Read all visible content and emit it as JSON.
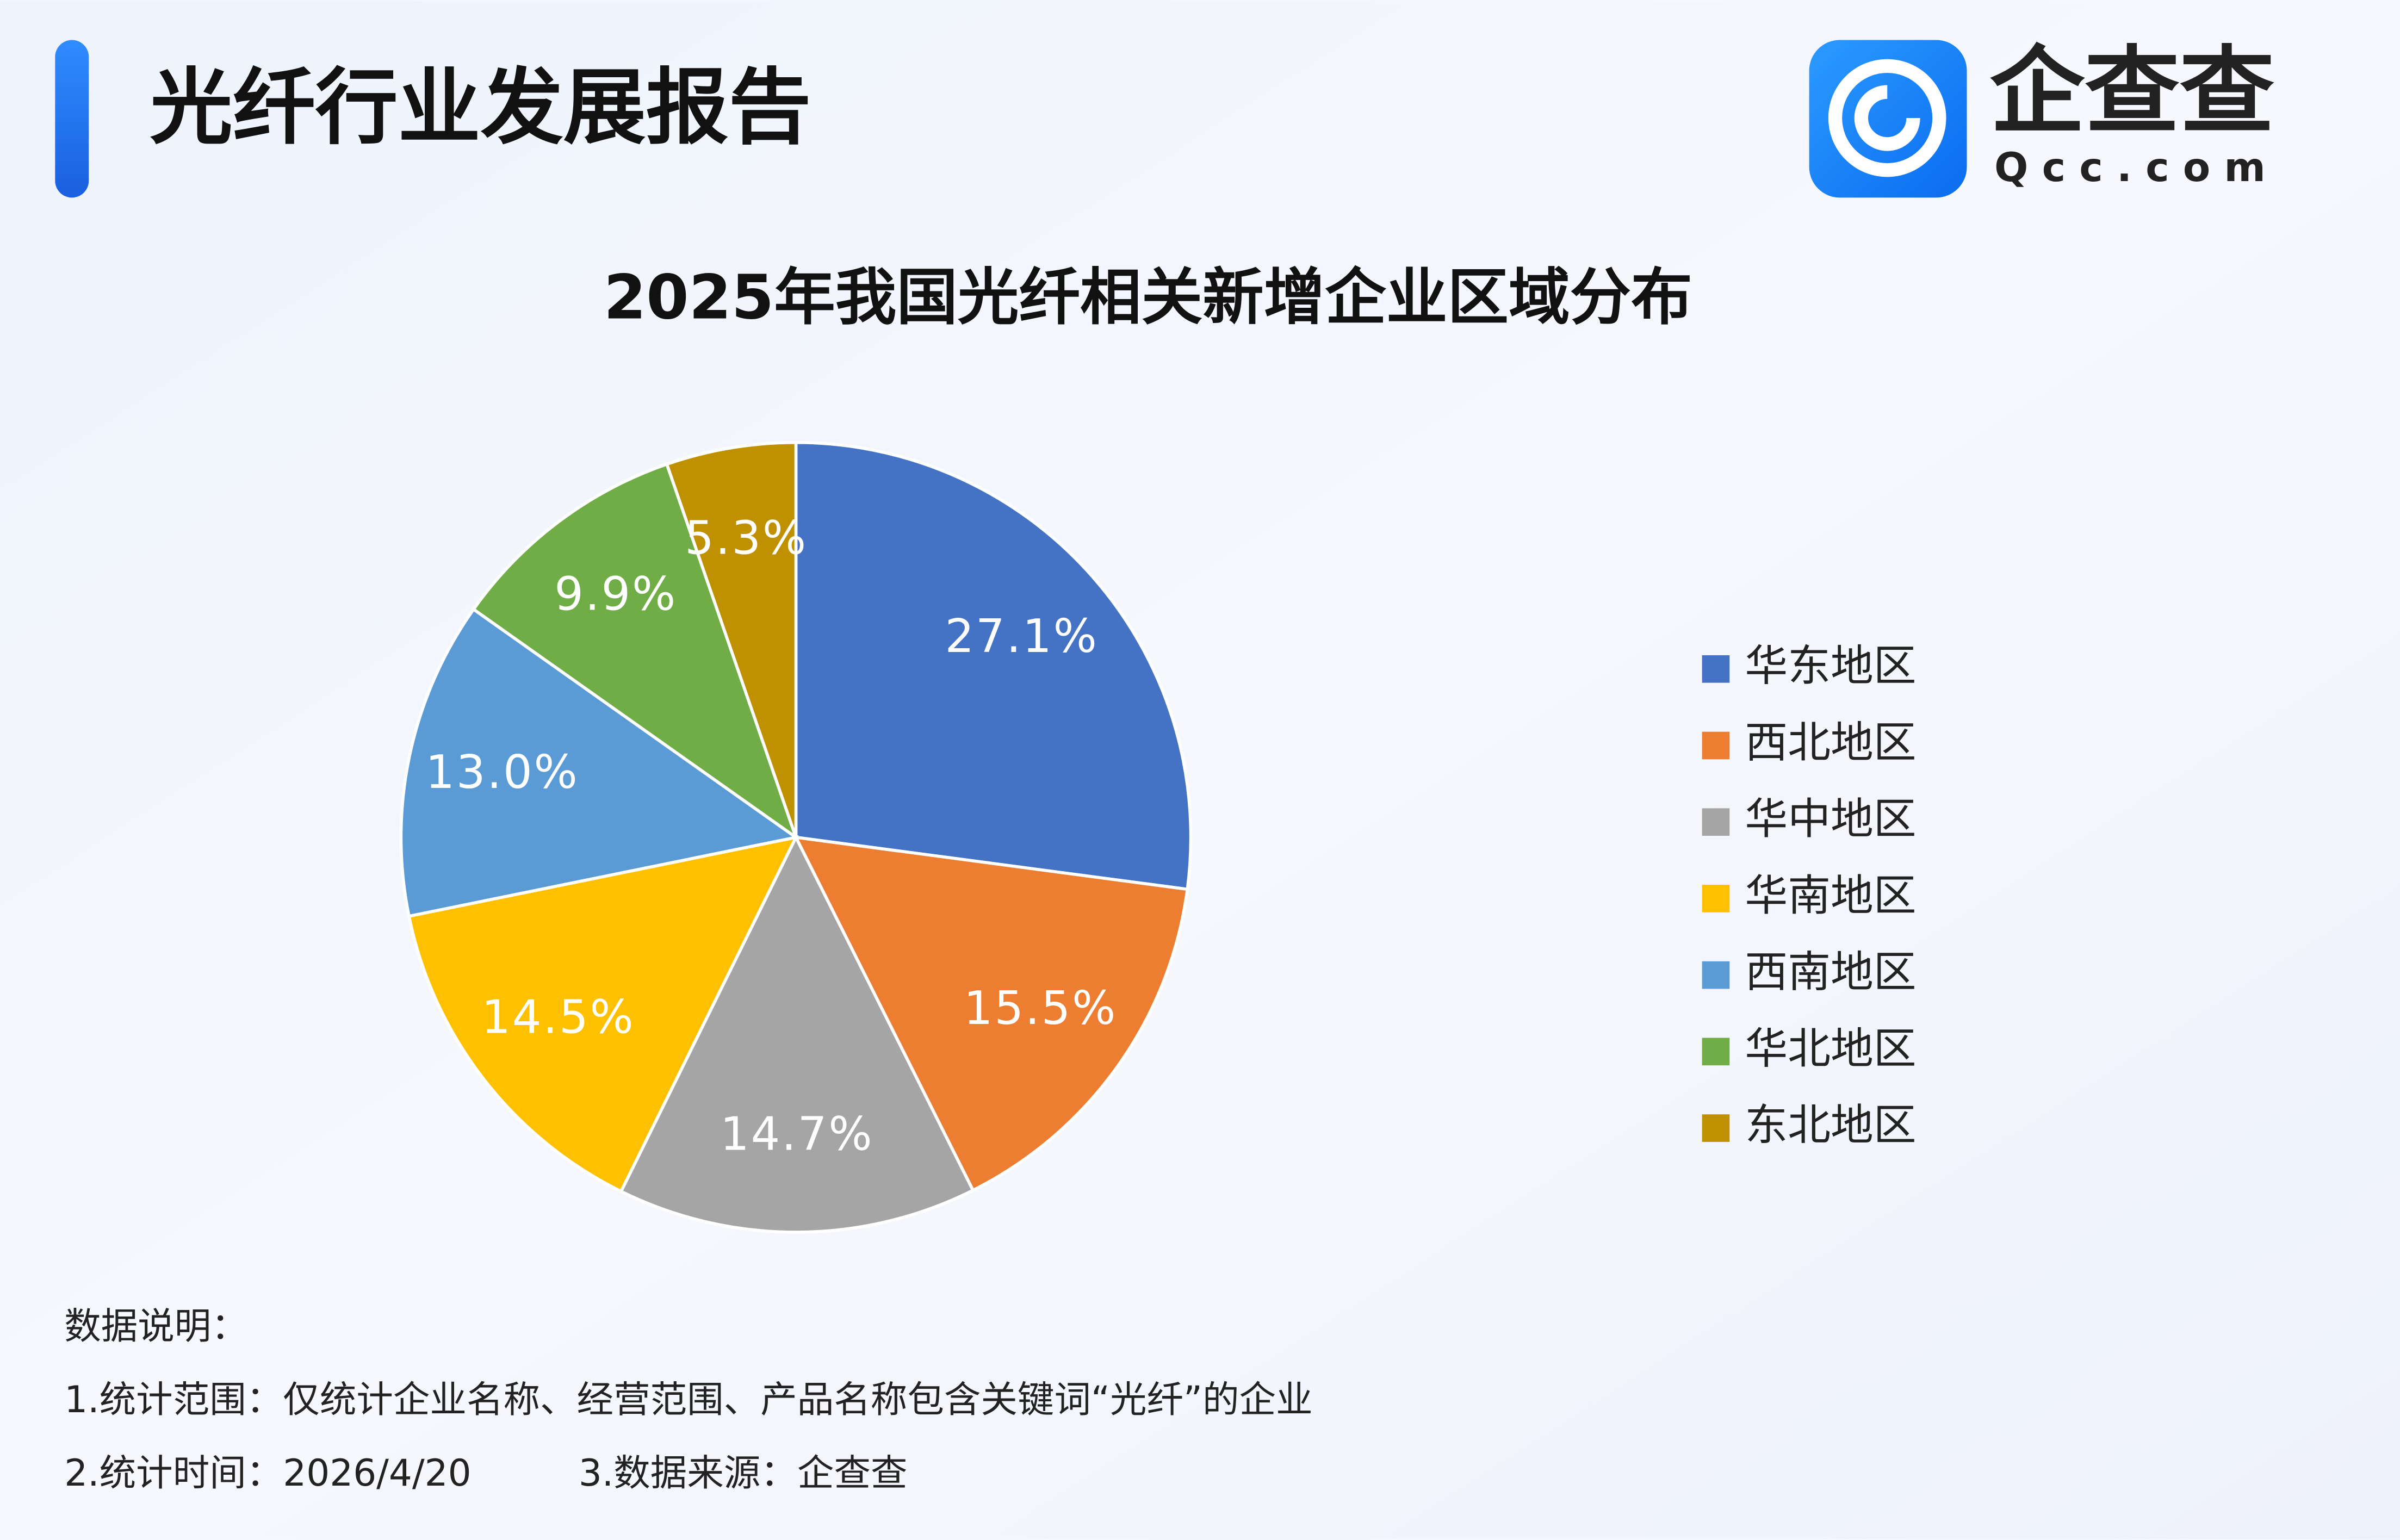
{
  "header": {
    "title": "光纤行业发展报告"
  },
  "logo": {
    "name": "企查查",
    "domain": "Qcc.com"
  },
  "chart_data": {
    "type": "pie",
    "title": "2025年我国光纤相关新增企业区域分布",
    "categories": [
      "华东地区",
      "西北地区",
      "华中地区",
      "华南地区",
      "西南地区",
      "华北地区",
      "东北地区"
    ],
    "values": [
      27.1,
      15.5,
      14.7,
      14.5,
      13.0,
      9.9,
      5.3
    ],
    "value_labels": [
      "27.1%",
      "15.5%",
      "14.7%",
      "14.5%",
      "13.0%",
      "9.9%",
      "5.3%"
    ],
    "colors": [
      "#4472c4",
      "#ed7d31",
      "#a5a5a5",
      "#ffc000",
      "#5b9bd5",
      "#70ad47",
      "#bf9000"
    ],
    "legend": "right"
  },
  "notes": {
    "heading": "数据说明：",
    "scope": "1.统计范围：仅统计企业名称、经营范围、产品名称包含关键词“光纤”的企业",
    "time": "2.统计时间：2026/4/20",
    "source": "3.数据来源：企查查"
  }
}
